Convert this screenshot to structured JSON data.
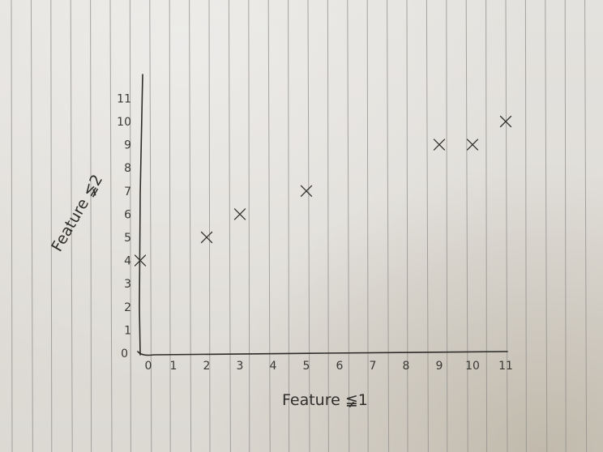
{
  "chart_data": {
    "type": "scatter",
    "title": "",
    "xlabel": "Feature ≨1",
    "ylabel": "Feature ≨2",
    "xlim": [
      0,
      11
    ],
    "ylim": [
      0,
      11
    ],
    "x_ticks": [
      "0",
      "1",
      "2",
      "3",
      "4",
      "5",
      "6",
      "7",
      "8",
      "9",
      "10",
      "11"
    ],
    "y_ticks": [
      "0",
      "1",
      "2",
      "3",
      "4",
      "5",
      "6",
      "7",
      "8",
      "9",
      "10",
      "11"
    ],
    "grid": false,
    "legend": "none",
    "series": [
      {
        "x": [
          0,
          2,
          3,
          5,
          9,
          10,
          11
        ],
        "y": [
          4,
          5,
          6,
          7,
          9,
          9,
          10
        ]
      }
    ],
    "colors": {
      "ink": "#33322f",
      "paper": "#e2e0dc",
      "ruling": "#8f8d8a"
    }
  }
}
